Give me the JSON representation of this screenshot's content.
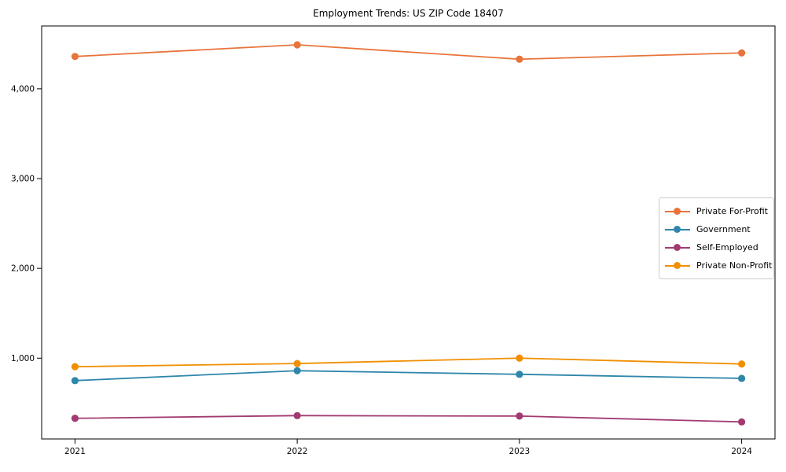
{
  "figure": {
    "title": "Employment Trends: US ZIP Code 18407"
  },
  "chart_data": {
    "type": "line",
    "title": "Employment Trends: US ZIP Code 18407",
    "x": [
      2021,
      2022,
      2023,
      2024
    ],
    "xtick_labels": [
      "2021",
      "2022",
      "2023",
      "2024"
    ],
    "ytick_values": [
      1000,
      2000,
      3000,
      4000
    ],
    "ytick_labels": [
      "1,000",
      "2,000",
      "3,000",
      "4,000"
    ],
    "xlim": [
      2020.85,
      2024.15
    ],
    "ylim": [
      100,
      4700
    ],
    "grid": false,
    "marker": "circle",
    "legend_position": "center right",
    "xlabel": "",
    "ylabel": "",
    "series": [
      {
        "name": "Private For-Profit",
        "color": "#E8743B",
        "values": [
          4360,
          4490,
          4330,
          4400
        ]
      },
      {
        "name": "Government",
        "color": "#2E86AB",
        "values": [
          750,
          860,
          820,
          775
        ]
      },
      {
        "name": "Self-Employed",
        "color": "#A23B72",
        "values": [
          330,
          360,
          355,
          290
        ]
      },
      {
        "name": "Private Non-Profit",
        "color": "#F18F01",
        "values": [
          905,
          940,
          1000,
          935
        ]
      }
    ]
  }
}
